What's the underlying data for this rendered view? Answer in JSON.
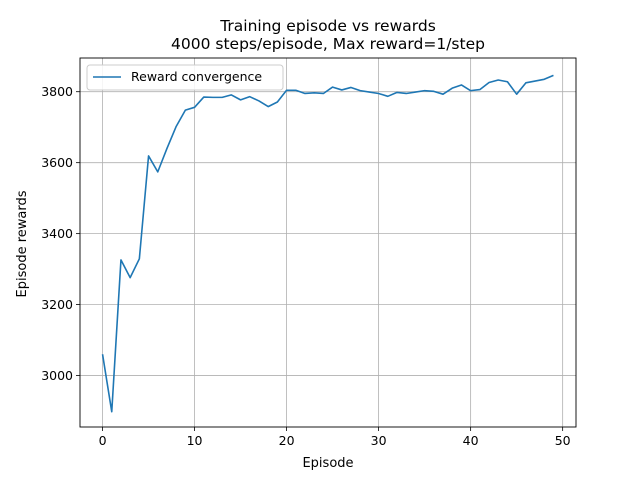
{
  "chart_data": {
    "type": "line",
    "title": "Training episode vs rewards",
    "subtitle": "4000 steps/episode, Max reward=1/step",
    "xlabel": "Episode",
    "ylabel": "Episode rewards",
    "xlim": [
      -2.45,
      51.45
    ],
    "ylim": [
      2855,
      3895
    ],
    "x_ticks": [
      0,
      10,
      20,
      30,
      40,
      50
    ],
    "y_ticks": [
      3000,
      3200,
      3400,
      3600,
      3800
    ],
    "grid": true,
    "legend_position": "top-left",
    "series": [
      {
        "name": "Reward convergence",
        "color": "#1f77b4",
        "x": [
          0,
          1,
          2,
          3,
          4,
          5,
          6,
          7,
          8,
          9,
          10,
          11,
          12,
          13,
          14,
          15,
          16,
          17,
          18,
          19,
          20,
          21,
          22,
          23,
          24,
          25,
          26,
          27,
          28,
          29,
          30,
          31,
          32,
          33,
          34,
          35,
          36,
          37,
          38,
          39,
          40,
          41,
          42,
          43,
          44,
          45,
          46,
          47,
          48,
          49
        ],
        "y": [
          3060,
          2898,
          3326,
          3276,
          3329,
          3619,
          3574,
          3640,
          3702,
          3748,
          3756,
          3785,
          3784,
          3784,
          3791,
          3777,
          3786,
          3774,
          3758,
          3771,
          3804,
          3804,
          3795,
          3797,
          3795,
          3813,
          3805,
          3812,
          3803,
          3799,
          3795,
          3787,
          3798,
          3795,
          3799,
          3803,
          3801,
          3793,
          3810,
          3819,
          3803,
          3806,
          3826,
          3833,
          3828,
          3793,
          3825,
          3830,
          3835,
          3846
        ]
      }
    ]
  }
}
